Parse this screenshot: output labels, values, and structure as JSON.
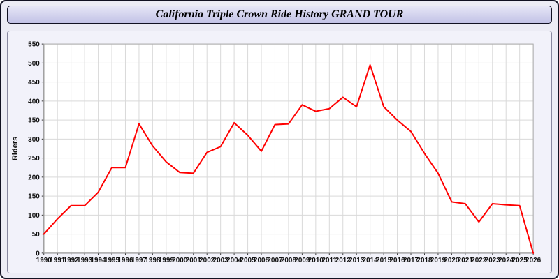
{
  "page": {
    "title": "California Triple Crown Ride History GRAND TOUR"
  },
  "chart_data": {
    "type": "line",
    "title": "California Triple Crown Ride History GRAND TOUR",
    "xlabel": "",
    "ylabel": "Riders",
    "ylim": [
      0,
      550
    ],
    "ytick_step": 50,
    "grid": true,
    "legend": "none",
    "line_color": "#ff0000",
    "plot_bg": "#ffffff",
    "grid_color": "#d9d9d9",
    "categories": [
      "1990",
      "1991",
      "1992",
      "1993",
      "1994",
      "1995",
      "1996",
      "1997",
      "1998",
      "1999",
      "2000",
      "2001",
      "2002",
      "2003",
      "2004",
      "2005",
      "2006",
      "2007",
      "2008",
      "2009",
      "2010",
      "2011",
      "2012",
      "2013",
      "2014",
      "2015",
      "2016",
      "2017",
      "2018",
      "2019",
      "2020",
      "2021",
      "2022",
      "2023",
      "2024",
      "2025",
      "2026"
    ],
    "series": [
      {
        "name": "Riders",
        "values": [
          50,
          90,
          125,
          125,
          160,
          225,
          225,
          340,
          282,
          240,
          212,
          210,
          265,
          280,
          343,
          310,
          268,
          338,
          340,
          390,
          373,
          380,
          410,
          385,
          495,
          385,
          350,
          320,
          262,
          210,
          135,
          130,
          82,
          130,
          127,
          125,
          0
        ]
      }
    ]
  }
}
